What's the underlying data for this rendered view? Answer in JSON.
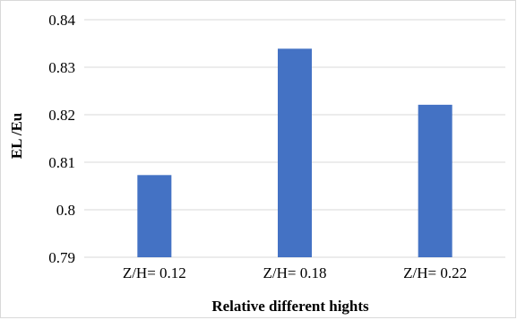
{
  "chart_data": {
    "type": "bar",
    "categories": [
      "Z/H= 0.12",
      "Z/H= 0.18",
      "Z/H= 0.22"
    ],
    "values": [
      0.8073,
      0.8339,
      0.8221
    ],
    "xlabel": "Relative different hights",
    "ylabel": "EL /Eu",
    "ylim": [
      0.79,
      0.84
    ],
    "yticks": [
      0.79,
      0.8,
      0.81,
      0.82,
      0.83,
      0.84
    ],
    "ytick_labels": [
      "0.79",
      "0.8",
      "0.81",
      "0.82",
      "0.83",
      "0.84"
    ],
    "grid": "horizontal",
    "legend": "none",
    "bar_color": "#4472c4",
    "grid_color": "#d9d9d9"
  }
}
